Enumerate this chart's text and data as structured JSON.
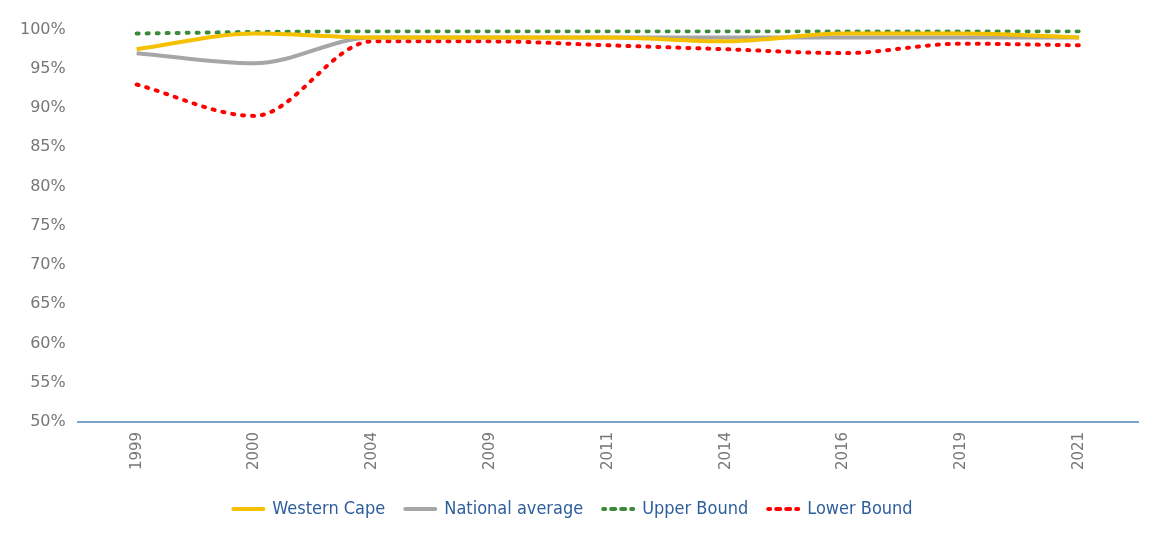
{
  "chart_data": {
    "type": "line",
    "categories": [
      "1999",
      "2000",
      "2004",
      "2009",
      "2011",
      "2014",
      "2016",
      "2019",
      "2021"
    ],
    "series": [
      {
        "name": "Western Cape",
        "color": "#f5c000",
        "line_style": "solid",
        "values": [
          97.5,
          99.5,
          99,
          99,
          99,
          98.5,
          99.5,
          99.5,
          99
        ]
      },
      {
        "name": "National average",
        "color": "#a6a6a6",
        "line_style": "solid",
        "values": [
          97,
          95.7,
          99,
          99,
          99,
          99,
          99,
          99,
          99
        ]
      },
      {
        "name": "Upper Bound",
        "color": "#3a8a3a",
        "line_style": "dotted",
        "values": [
          99.5,
          99.7,
          99.8,
          99.8,
          99.8,
          99.8,
          99.8,
          99.8,
          99.8
        ]
      },
      {
        "name": "Lower Bound",
        "color": "#ff0000",
        "line_style": "dotted",
        "values": [
          93,
          89,
          98.5,
          98.5,
          98,
          97.5,
          97,
          98.2,
          98
        ]
      }
    ],
    "ylim": [
      50,
      100
    ],
    "yticks": [
      {
        "value": 50,
        "label": "50%"
      },
      {
        "value": 55,
        "label": "55%"
      },
      {
        "value": 60,
        "label": "60%"
      },
      {
        "value": 65,
        "label": "65%"
      },
      {
        "value": 70,
        "label": "70%"
      },
      {
        "value": 75,
        "label": "75%"
      },
      {
        "value": 80,
        "label": "80%"
      },
      {
        "value": 85,
        "label": "85%"
      },
      {
        "value": 90,
        "label": "90%"
      },
      {
        "value": 95,
        "label": "95%"
      },
      {
        "value": 100,
        "label": "100%"
      }
    ],
    "grid": false,
    "legend": "bottom",
    "marker": "none"
  }
}
